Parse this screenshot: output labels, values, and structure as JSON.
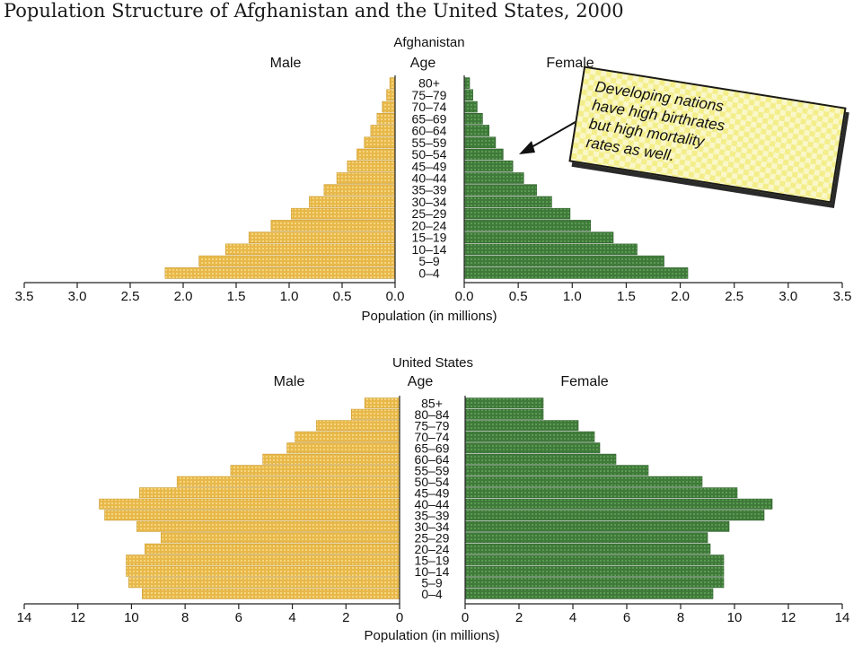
{
  "title": "Population Structure of Afghanistan and the United States, 2000",
  "callout": {
    "lines": [
      "Developing nations",
      "have high birthrates",
      "but high mortality",
      "rates as well."
    ]
  },
  "colors": {
    "male": "#e8b84a",
    "female": "#3f7a3a",
    "male_dot": "#f5d67e",
    "female_dot": "#5b9a52"
  },
  "chart_data": [
    {
      "type": "bar",
      "title": "Afghanistan",
      "left_label": "Male",
      "right_label": "Female",
      "category_label": "Age",
      "xlabel": "Population (in millions)",
      "xlim": [
        0,
        3.5
      ],
      "tick_values": [
        0,
        0.5,
        1,
        1.5,
        2,
        2.5,
        3,
        3.5
      ],
      "tick_labels": [
        "0.0",
        "0.5",
        "1.0",
        "1.5",
        "2.0",
        "2.5",
        "3.0",
        "3.5"
      ],
      "categories": [
        "80+",
        "75–79",
        "70–74",
        "65–69",
        "60–64",
        "55–59",
        "50–54",
        "45–49",
        "40–44",
        "35–39",
        "30–34",
        "25–29",
        "20–24",
        "15–19",
        "10–14",
        "5–9",
        "0–4"
      ],
      "series": [
        {
          "name": "Male",
          "values": [
            0.05,
            0.08,
            0.12,
            0.17,
            0.23,
            0.29,
            0.36,
            0.45,
            0.55,
            0.67,
            0.81,
            0.98,
            1.17,
            1.38,
            1.6,
            1.85,
            2.17
          ]
        },
        {
          "name": "Female",
          "values": [
            0.05,
            0.08,
            0.12,
            0.17,
            0.23,
            0.29,
            0.36,
            0.45,
            0.55,
            0.67,
            0.81,
            0.98,
            1.17,
            1.38,
            1.6,
            1.85,
            2.07
          ]
        }
      ]
    },
    {
      "type": "bar",
      "title": "United States",
      "left_label": "Male",
      "right_label": "Female",
      "category_label": "Age",
      "xlabel": "Population (in millions)",
      "xlim": [
        0,
        14
      ],
      "tick_values": [
        0,
        2,
        4,
        6,
        8,
        10,
        12,
        14
      ],
      "tick_labels": [
        "0",
        "2",
        "4",
        "6",
        "8",
        "10",
        "12",
        "14"
      ],
      "categories": [
        "85+",
        "80–84",
        "75–79",
        "70–74",
        "65–69",
        "60–64",
        "55–59",
        "50–54",
        "45–49",
        "40–44",
        "35–39",
        "30–34",
        "25–29",
        "20–24",
        "15–19",
        "10–14",
        "5–9",
        "0–4"
      ],
      "series": [
        {
          "name": "Male",
          "values": [
            1.3,
            1.8,
            3.1,
            3.9,
            4.2,
            5.1,
            6.3,
            8.3,
            9.7,
            11.2,
            11.0,
            9.8,
            8.9,
            9.5,
            10.2,
            10.2,
            10.1,
            9.6
          ]
        },
        {
          "name": "Female",
          "values": [
            2.9,
            2.9,
            4.2,
            4.8,
            5.0,
            5.6,
            6.8,
            8.8,
            10.1,
            11.4,
            11.1,
            9.8,
            9.0,
            9.1,
            9.6,
            9.6,
            9.6,
            9.2
          ]
        }
      ]
    }
  ]
}
